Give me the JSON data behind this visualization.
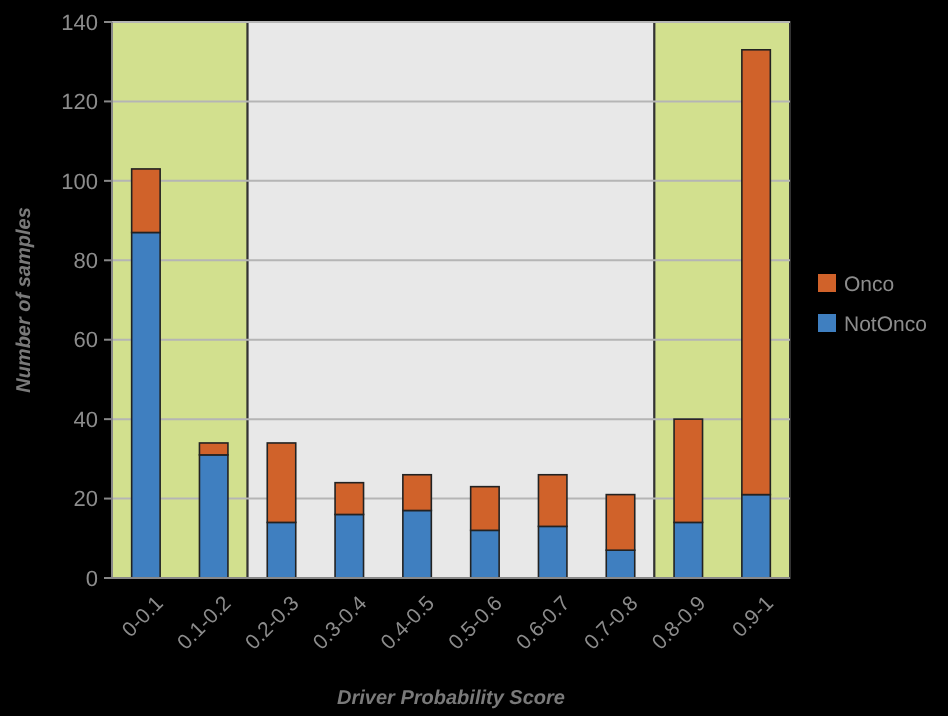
{
  "chart_data": {
    "type": "bar",
    "stacked": true,
    "xlabel": "Driver Probability Score",
    "ylabel": "Number of samples",
    "categories": [
      "0-0.1",
      "0.1-0.2",
      "0.2-0.3",
      "0.3-0.4",
      "0.4-0.5",
      "0.5-0.6",
      "0.6-0.7",
      "0.7-0.8",
      "0.8-0.9",
      "0.9-1"
    ],
    "series": [
      {
        "name": "NotOnco",
        "color": "#3f7fc0",
        "values": [
          87,
          31,
          14,
          16,
          17,
          12,
          13,
          7,
          14,
          21
        ]
      },
      {
        "name": "Onco",
        "color": "#d0622a",
        "values": [
          16,
          3,
          20,
          8,
          9,
          11,
          13,
          14,
          26,
          112
        ]
      }
    ],
    "ylim": [
      0,
      140
    ],
    "yticks": [
      0,
      20,
      40,
      60,
      80,
      100,
      120,
      140
    ],
    "grid": "y",
    "legend": "right",
    "bands": [
      {
        "axis": "x",
        "from": "0-0.1",
        "to": "0.1-0.2",
        "color": "#d2e08e"
      },
      {
        "axis": "x",
        "from": "0.2-0.3",
        "to": "0.7-0.8",
        "color": "#e8e8e8"
      },
      {
        "axis": "x",
        "from": "0.8-0.9",
        "to": "0.9-1",
        "color": "#d2e08e"
      }
    ]
  }
}
